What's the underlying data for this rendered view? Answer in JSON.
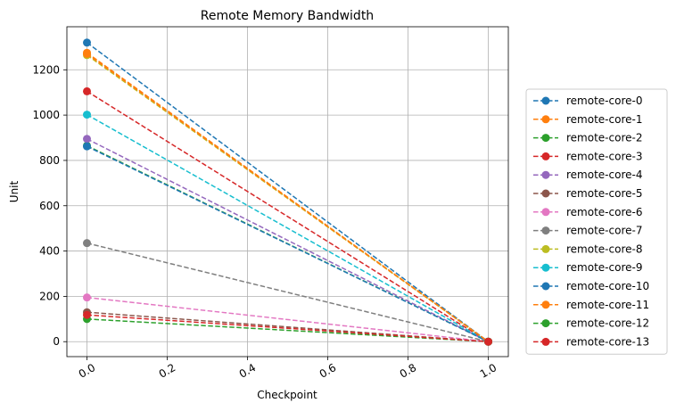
{
  "chart_data": {
    "type": "line",
    "title": "Remote Memory Bandwidth",
    "xlabel": "Checkpoint",
    "ylabel": "Unit",
    "xlim": [
      -0.05,
      1.05
    ],
    "ylim": [
      -66,
      1390
    ],
    "x_ticks": [
      "0.0",
      "0.2",
      "0.4",
      "0.6",
      "0.8",
      "1.0"
    ],
    "y_ticks": [
      "0",
      "200",
      "400",
      "600",
      "800",
      "1000",
      "1200"
    ],
    "grid": true,
    "legend_position": "right",
    "line_style": "dashed",
    "marker": "circle",
    "x": [
      0.0,
      1.0
    ],
    "series": [
      {
        "name": "remote-core-0",
        "color": "#1f77b4",
        "values": [
          1320,
          0
        ]
      },
      {
        "name": "remote-core-1",
        "color": "#ff7f0e",
        "values": [
          1275,
          0
        ]
      },
      {
        "name": "remote-core-2",
        "color": "#2ca02c",
        "values": [
          865,
          0
        ]
      },
      {
        "name": "remote-core-3",
        "color": "#d62728",
        "values": [
          1105,
          0
        ]
      },
      {
        "name": "remote-core-4",
        "color": "#9467bd",
        "values": [
          895,
          0
        ]
      },
      {
        "name": "remote-core-5",
        "color": "#8c564b",
        "values": [
          130,
          0
        ]
      },
      {
        "name": "remote-core-6",
        "color": "#e377c2",
        "values": [
          195,
          0
        ]
      },
      {
        "name": "remote-core-7",
        "color": "#7f7f7f",
        "values": [
          435,
          0
        ]
      },
      {
        "name": "remote-core-8",
        "color": "#bcbd22",
        "values": [
          1265,
          0
        ]
      },
      {
        "name": "remote-core-9",
        "color": "#17becf",
        "values": [
          1002,
          0
        ]
      },
      {
        "name": "remote-core-10",
        "color": "#1f77b4",
        "values": [
          862,
          0
        ]
      },
      {
        "name": "remote-core-11",
        "color": "#ff7f0e",
        "values": [
          1270,
          0
        ]
      },
      {
        "name": "remote-core-12",
        "color": "#2ca02c",
        "values": [
          100,
          0
        ]
      },
      {
        "name": "remote-core-13",
        "color": "#d62728",
        "values": [
          118,
          0
        ]
      }
    ]
  }
}
